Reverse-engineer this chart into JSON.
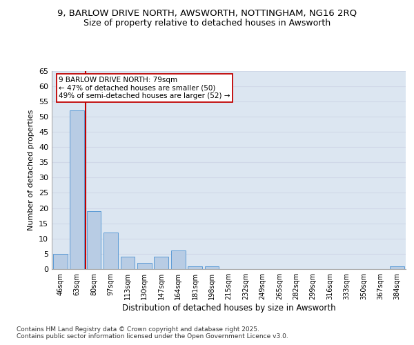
{
  "title1": "9, BARLOW DRIVE NORTH, AWSWORTH, NOTTINGHAM, NG16 2RQ",
  "title2": "Size of property relative to detached houses in Awsworth",
  "xlabel": "Distribution of detached houses by size in Awsworth",
  "ylabel": "Number of detached properties",
  "categories": [
    "46sqm",
    "63sqm",
    "80sqm",
    "97sqm",
    "113sqm",
    "130sqm",
    "147sqm",
    "164sqm",
    "181sqm",
    "198sqm",
    "215sqm",
    "232sqm",
    "249sqm",
    "265sqm",
    "282sqm",
    "299sqm",
    "316sqm",
    "333sqm",
    "350sqm",
    "367sqm",
    "384sqm"
  ],
  "values": [
    5,
    52,
    19,
    12,
    4,
    2,
    4,
    6,
    1,
    1,
    0,
    0,
    0,
    0,
    0,
    0,
    0,
    0,
    0,
    0,
    1
  ],
  "bar_color": "#b8cce4",
  "bar_edge_color": "#5b9bd5",
  "grid_color": "#d0d8e8",
  "background_color": "#dce6f1",
  "vline_x_index": 2,
  "vline_color": "#c00000",
  "annotation_text": "9 BARLOW DRIVE NORTH: 79sqm\n← 47% of detached houses are smaller (50)\n49% of semi-detached houses are larger (52) →",
  "annotation_box_color": "#ffffff",
  "annotation_box_edge": "#c00000",
  "footer": "Contains HM Land Registry data © Crown copyright and database right 2025.\nContains public sector information licensed under the Open Government Licence v3.0.",
  "ylim": [
    0,
    65
  ],
  "yticks": [
    0,
    5,
    10,
    15,
    20,
    25,
    30,
    35,
    40,
    45,
    50,
    55,
    60,
    65
  ]
}
